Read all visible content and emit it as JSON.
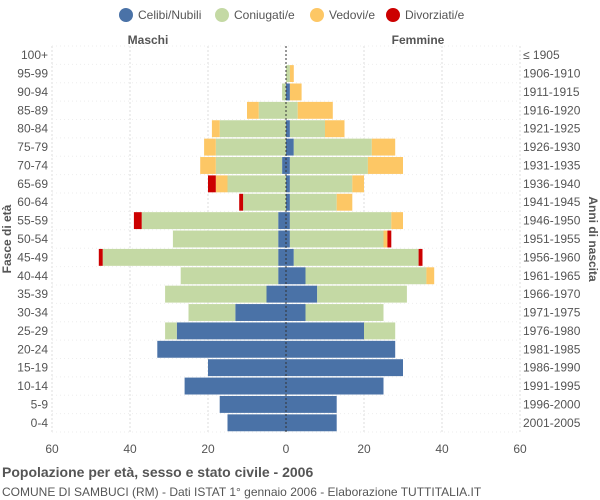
{
  "chart_data": {
    "type": "bar",
    "orientation": "horizontal",
    "title": "Popolazione per età, sesso e stato civile - 2006",
    "subtitle": "COMUNE DI SAMBUCI (RM) - Dati ISTAT 1° gennaio 2006 - Elaborazione TUTTITALIA.IT",
    "left_header": "Maschi",
    "right_header": "Femmine",
    "ylabel_left": "Fasce di età",
    "ylabel_right": "Anni di nascita",
    "xlim": [
      -60,
      60
    ],
    "xticks": [
      -60,
      -40,
      -20,
      0,
      20,
      40,
      60
    ],
    "xtick_labels": [
      "60",
      "40",
      "20",
      "0",
      "20",
      "40",
      "60"
    ],
    "categories": [
      "100+",
      "95-99",
      "90-94",
      "85-89",
      "80-84",
      "75-79",
      "70-74",
      "65-69",
      "60-64",
      "55-59",
      "50-54",
      "45-49",
      "40-44",
      "35-39",
      "30-34",
      "25-29",
      "20-24",
      "15-19",
      "10-14",
      "5-9",
      "0-4"
    ],
    "birth_years": [
      "≤ 1905",
      "1906-1910",
      "1911-1915",
      "1916-1920",
      "1921-1925",
      "1926-1930",
      "1931-1935",
      "1936-1940",
      "1941-1945",
      "1946-1950",
      "1951-1955",
      "1956-1960",
      "1961-1965",
      "1966-1970",
      "1971-1975",
      "1976-1980",
      "1981-1985",
      "1986-1990",
      "1991-1995",
      "1996-2000",
      "2001-2005"
    ],
    "series_names": [
      "Celibi/Nubili",
      "Coniugati/e",
      "Vedovi/e",
      "Divorziati/e"
    ],
    "colors": [
      "#4a72a7",
      "#c4d9a4",
      "#fdc765",
      "#cc0000"
    ],
    "males": [
      [
        0,
        0,
        0,
        0
      ],
      [
        0,
        0,
        0,
        0
      ],
      [
        0,
        1,
        0,
        0
      ],
      [
        0,
        7,
        3,
        0
      ],
      [
        0,
        17,
        2,
        0
      ],
      [
        0,
        18,
        3,
        0
      ],
      [
        1,
        17,
        4,
        0
      ],
      [
        0,
        15,
        3,
        2
      ],
      [
        0,
        11,
        0,
        1
      ],
      [
        2,
        35,
        0,
        2
      ],
      [
        2,
        27,
        0,
        0
      ],
      [
        2,
        45,
        0,
        1
      ],
      [
        2,
        25,
        0,
        0
      ],
      [
        5,
        26,
        0,
        0
      ],
      [
        13,
        12,
        0,
        0
      ],
      [
        28,
        3,
        0,
        0
      ],
      [
        33,
        0,
        0,
        0
      ],
      [
        20,
        0,
        0,
        0
      ],
      [
        26,
        0,
        0,
        0
      ],
      [
        17,
        0,
        0,
        0
      ],
      [
        15,
        0,
        0,
        0
      ]
    ],
    "females": [
      [
        0,
        0,
        0,
        0
      ],
      [
        0,
        1,
        1,
        0
      ],
      [
        1,
        0,
        3,
        0
      ],
      [
        0,
        3,
        9,
        0
      ],
      [
        1,
        9,
        5,
        0
      ],
      [
        2,
        20,
        6,
        0
      ],
      [
        1,
        20,
        9,
        0
      ],
      [
        1,
        16,
        3,
        0
      ],
      [
        1,
        12,
        4,
        0
      ],
      [
        1,
        26,
        3,
        0
      ],
      [
        1,
        24,
        1,
        1
      ],
      [
        2,
        32,
        0,
        1
      ],
      [
        5,
        31,
        2,
        0
      ],
      [
        8,
        23,
        0,
        0
      ],
      [
        5,
        20,
        0,
        0
      ],
      [
        20,
        8,
        0,
        0
      ],
      [
        28,
        0,
        0,
        0
      ],
      [
        30,
        0,
        0,
        0
      ],
      [
        25,
        0,
        0,
        0
      ],
      [
        13,
        0,
        0,
        0
      ],
      [
        13,
        0,
        0,
        0
      ]
    ]
  }
}
